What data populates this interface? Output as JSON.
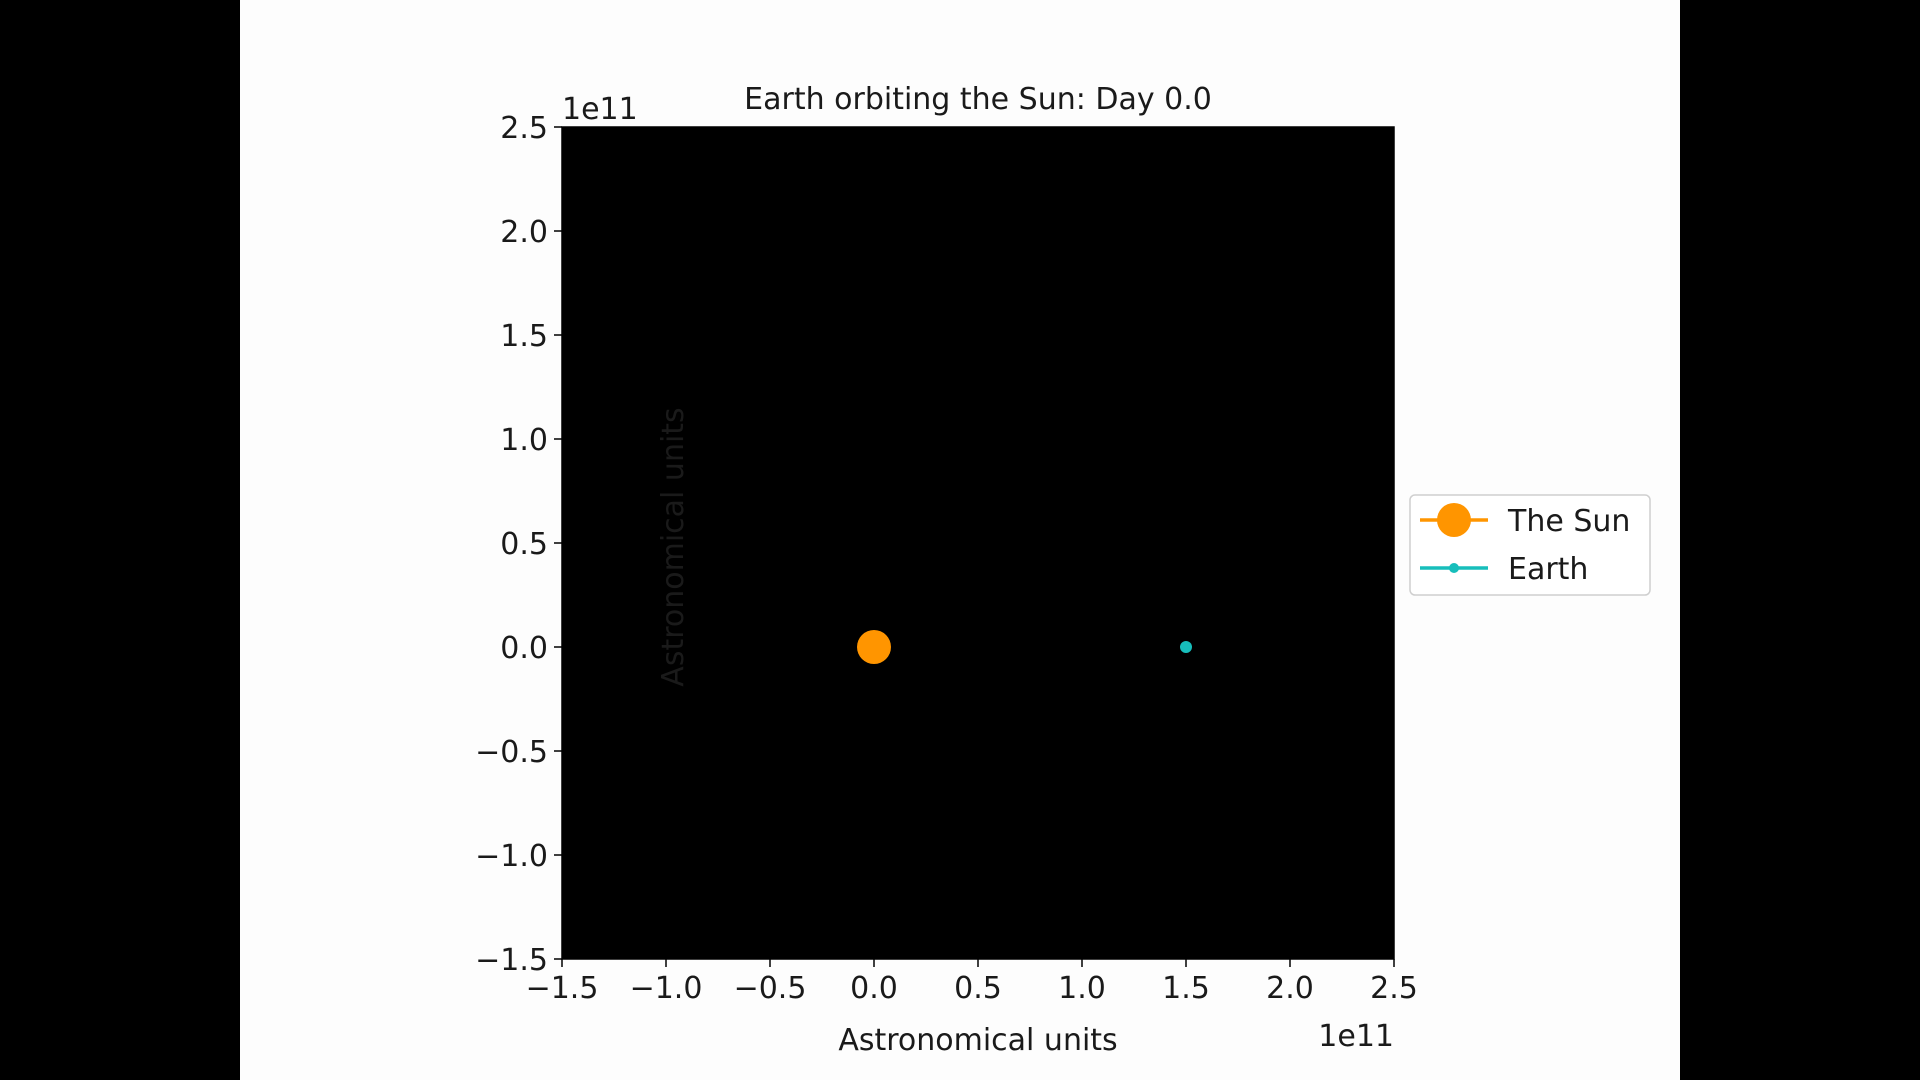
{
  "chart_data": {
    "type": "scatter",
    "title": "Earth orbiting the Sun: Day 0.0",
    "xlabel": "Astronomical units",
    "ylabel": "Astronomical units",
    "x_offset_label": "1e11",
    "y_offset_label": "1e11",
    "xlim": [
      -1.5,
      2.5
    ],
    "ylim": [
      -1.5,
      2.5
    ],
    "xticks": [
      "−1.5",
      "−1.0",
      "−0.5",
      "0.0",
      "0.5",
      "1.0",
      "1.5",
      "2.0",
      "2.5"
    ],
    "yticks": [
      "−1.5",
      "−1.0",
      "−0.5",
      "0.0",
      "0.5",
      "1.0",
      "1.5",
      "2.0",
      "2.5"
    ],
    "xtick_values": [
      -1.5,
      -1.0,
      -0.5,
      0.0,
      0.5,
      1.0,
      1.5,
      2.0,
      2.5
    ],
    "ytick_values": [
      -1.5,
      -1.0,
      -0.5,
      0.0,
      0.5,
      1.0,
      1.5,
      2.0,
      2.5
    ],
    "plot_background": "#000000",
    "grid": false,
    "legend_position": "right, outside the axes",
    "series": [
      {
        "name": "The Sun",
        "color": "#ff9500",
        "marker": "large-circle",
        "points": [
          {
            "x": 0.0,
            "y": 0.0
          }
        ]
      },
      {
        "name": "Earth",
        "color": "#17bebb",
        "marker": "small-circle",
        "points": [
          {
            "x": 1.5,
            "y": 0.0
          }
        ]
      }
    ]
  }
}
